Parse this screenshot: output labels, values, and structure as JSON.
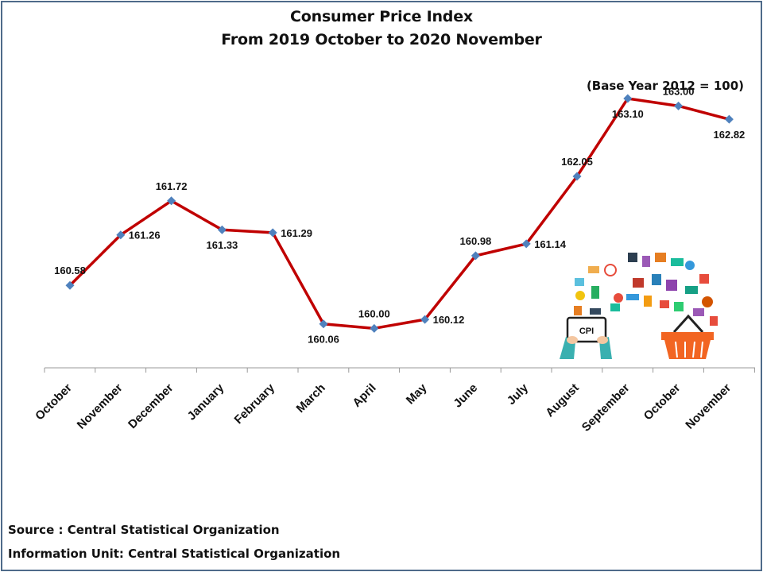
{
  "header": {
    "title_line1": "Consumer Price Index",
    "title_line2": "From 2019 October  to 2020 November",
    "base_note": "(Base Year  2012 = 100)"
  },
  "footer": {
    "source_text": "Source  : Central Statistical Organization",
    "info_text": "Information Unit:  Central Statistical Organization"
  },
  "illustration": {
    "tablet_text": "CPI",
    "icons": [
      "shopping-basket-icon",
      "tablet-icon",
      "hands-icon",
      "shopping-items-icon"
    ]
  },
  "colors": {
    "line": "#c00000",
    "marker": "#4f81bd",
    "frame": "#4f6b8a",
    "axis": "#999999"
  },
  "chart_data": {
    "type": "line",
    "categories": [
      "October",
      "November",
      "December",
      "January",
      "February",
      "March",
      "April",
      "May",
      "June",
      "July",
      "August",
      "September",
      "October",
      "November"
    ],
    "series": [
      {
        "values": [
          160.58,
          161.26,
          161.72,
          161.33,
          161.29,
          160.06,
          160.0,
          160.12,
          160.98,
          161.14,
          162.05,
          163.1,
          163.0,
          162.82
        ]
      }
    ],
    "data_labels": [
      "160.58",
      "161.26",
      "161.72",
      "161.33",
      "161.29",
      "160.06",
      "160.00",
      "160.12",
      "160.98",
      "161.14",
      "162.05",
      "163.10",
      "163.00",
      "162.82"
    ],
    "label_positions": [
      "above",
      "right",
      "above",
      "below",
      "right",
      "below",
      "above",
      "right",
      "above",
      "right",
      "above",
      "below",
      "above",
      "below"
    ],
    "title": "Consumer Price Index",
    "subtitle": "From 2019 October  to 2020 November",
    "xlabel": "",
    "ylabel": "",
    "ylim": [
      158.0,
      164.0
    ],
    "grid": false,
    "legend": "none"
  }
}
